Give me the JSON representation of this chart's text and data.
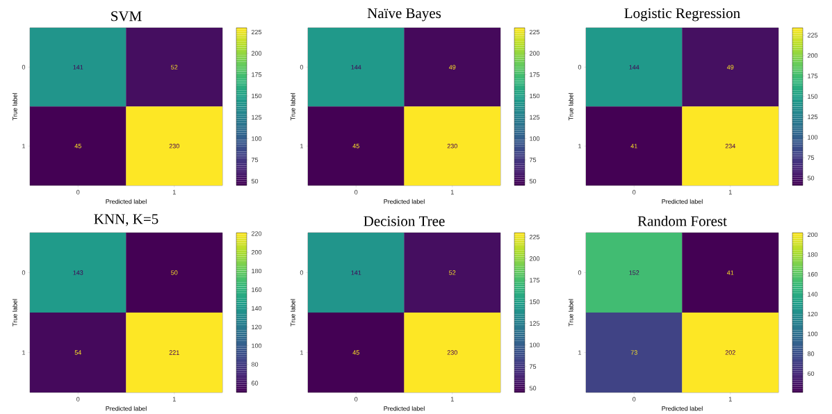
{
  "chart_data": [
    {
      "type": "heatmap",
      "title": "SVM",
      "xlabel": "Predicted label",
      "ylabel": "True label",
      "categories": [
        "0",
        "1"
      ],
      "y_categories": [
        "0",
        "1"
      ],
      "cells": [
        [
          141,
          52
        ],
        [
          45,
          230
        ]
      ],
      "data_labels": true,
      "clim": [
        45,
        230
      ],
      "cticks": [
        50,
        75,
        100,
        125,
        150,
        175,
        200,
        225
      ]
    },
    {
      "type": "heatmap",
      "title": "Naïve Bayes",
      "xlabel": "Predicted label",
      "ylabel": "True label",
      "categories": [
        "0",
        "1"
      ],
      "y_categories": [
        "0",
        "1"
      ],
      "cells": [
        [
          144,
          49
        ],
        [
          45,
          230
        ]
      ],
      "data_labels": true,
      "clim": [
        45,
        230
      ],
      "cticks": [
        50,
        75,
        100,
        125,
        150,
        175,
        200,
        225
      ]
    },
    {
      "type": "heatmap",
      "title": "Logistic Regression",
      "xlabel": "Predicted label",
      "ylabel": "True label",
      "categories": [
        "0",
        "1"
      ],
      "y_categories": [
        "0",
        "1"
      ],
      "cells": [
        [
          144,
          49
        ],
        [
          41,
          234
        ]
      ],
      "data_labels": true,
      "clim": [
        41,
        234
      ],
      "cticks": [
        50,
        75,
        100,
        125,
        150,
        175,
        200,
        225
      ]
    },
    {
      "type": "heatmap",
      "title": "KNN, K=5",
      "xlabel": "Predicted label",
      "ylabel": "True label",
      "categories": [
        "0",
        "1"
      ],
      "y_categories": [
        "0",
        "1"
      ],
      "cells": [
        [
          143,
          50
        ],
        [
          54,
          221
        ]
      ],
      "data_labels": true,
      "clim": [
        50,
        221
      ],
      "cticks": [
        60,
        80,
        100,
        120,
        140,
        160,
        180,
        200,
        220
      ]
    },
    {
      "type": "heatmap",
      "title": "Decision Tree",
      "xlabel": "Predicted label",
      "ylabel": "True label",
      "categories": [
        "0",
        "1"
      ],
      "y_categories": [
        "0",
        "1"
      ],
      "cells": [
        [
          141,
          52
        ],
        [
          45,
          230
        ]
      ],
      "data_labels": true,
      "clim": [
        45,
        230
      ],
      "cticks": [
        50,
        75,
        100,
        125,
        150,
        175,
        200,
        225
      ]
    },
    {
      "type": "heatmap",
      "title": "Random Forest",
      "xlabel": "Predicted label",
      "ylabel": "True label",
      "categories": [
        "0",
        "1"
      ],
      "y_categories": [
        "0",
        "1"
      ],
      "cells": [
        [
          152,
          41
        ],
        [
          73,
          202
        ]
      ],
      "data_labels": true,
      "clim": [
        41,
        202
      ],
      "cticks": [
        60,
        80,
        100,
        120,
        140,
        160,
        180,
        200
      ]
    }
  ]
}
